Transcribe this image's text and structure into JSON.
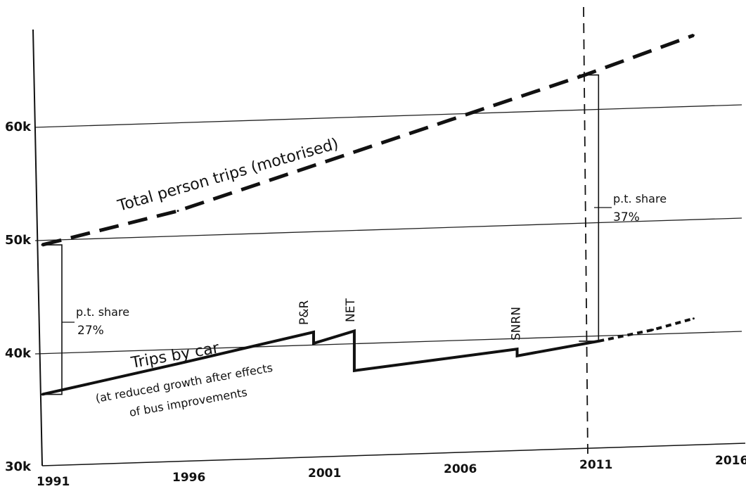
{
  "chart_data": {
    "type": "line",
    "title": "",
    "xlabel": "",
    "ylabel": "",
    "xlim": [
      1991,
      2016
    ],
    "ylim": [
      30000,
      70000
    ],
    "x_ticks": [
      "1991",
      "1996",
      "2001",
      "2006",
      "2011",
      "2016"
    ],
    "y_ticks": [
      "30k",
      "40k",
      "50k",
      "60k"
    ],
    "grid": "horizontal",
    "series": [
      {
        "name": "Total person trips (motorised)",
        "style": "dashed",
        "x": [
          1991,
          1996,
          2001,
          2006,
          2011,
          2015
        ],
        "y": [
          49500,
          52500,
          56500,
          60500,
          64500,
          68000
        ]
      },
      {
        "name": "Trips by car",
        "style": "solid",
        "x": [
          1991,
          1996,
          2001,
          2001,
          2002.5,
          2002.5,
          2008.5,
          2008.5,
          2011.5
        ],
        "y": [
          36300,
          39000,
          41800,
          40800,
          41900,
          38400,
          40300,
          39700,
          41000
        ]
      },
      {
        "name": "",
        "style": "dotted-dashed",
        "x": [
          2011.5,
          2013.5,
          2015
        ],
        "y": [
          41000,
          42000,
          43000
        ]
      }
    ],
    "annotations": {
      "total_label": "Total person trips (motorised)",
      "car_label": "Trips by car",
      "car_note_1": "(at reduced growth after effects",
      "car_note_2": "of bus improvements",
      "pt_share_label": "p.t. share",
      "pt_share_1991": "27%",
      "pt_share_2011": "37%",
      "events": [
        {
          "label": "P&R",
          "year": 2001
        },
        {
          "label": "NET",
          "year": 2002.5
        },
        {
          "label": "SNRN",
          "year": 2008.5
        }
      ],
      "reference_year": 2011
    }
  }
}
